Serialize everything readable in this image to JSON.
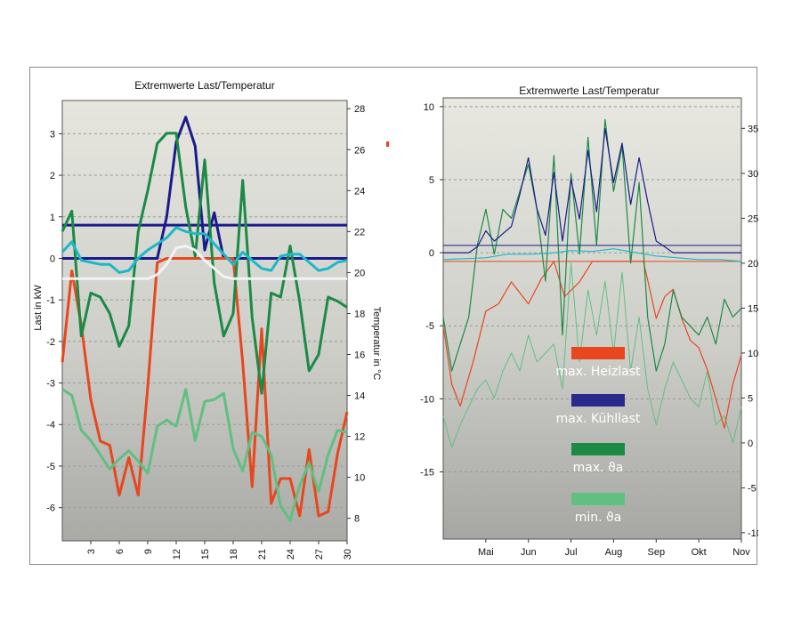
{
  "chart_data": [
    {
      "type": "line",
      "title": "Extremwerte Last/Temperatur",
      "ylabel": "Last in kW",
      "y2label": "Temperatur in °C",
      "xlim": [
        0,
        30
      ],
      "ylim": [
        -6.8,
        3.8
      ],
      "y2lim": [
        6.9,
        28.4
      ],
      "xticks": [
        "3",
        "6",
        "9",
        "12",
        "15",
        "18",
        "21",
        "24",
        "27",
        "30"
      ],
      "yticks": [
        "3",
        "2",
        "1",
        "0",
        "-1",
        "-2",
        "-3",
        "-4",
        "-5",
        "-6"
      ],
      "y2ticks": [
        "28",
        "26",
        "24",
        "22",
        "20",
        "18",
        "16",
        "14",
        "12",
        "10",
        "8"
      ],
      "grid": true,
      "series": [
        {
          "axis": "y",
          "color": "#1a1a8c",
          "x": [
            0,
            1,
            2,
            3,
            4,
            5,
            6,
            7,
            8,
            9,
            10,
            11,
            12,
            13,
            14,
            15,
            16,
            17,
            18,
            19,
            20,
            21,
            22,
            23,
            24,
            25,
            26,
            27,
            28,
            29,
            30
          ],
          "y": [
            0,
            0,
            0,
            0,
            0,
            0,
            0,
            0,
            0,
            0,
            0,
            1,
            2.8,
            3.4,
            2.7,
            0.2,
            1.1,
            0,
            0,
            0,
            0,
            0,
            0,
            0,
            0,
            0,
            0,
            0,
            0,
            0,
            0
          ]
        },
        {
          "axis": "y",
          "color": "#1a1a8c",
          "x": [
            0,
            30
          ],
          "y": [
            0.8,
            0.8
          ]
        },
        {
          "axis": "y",
          "color": "#e8461e",
          "x": [
            0,
            1,
            2,
            3,
            4,
            5,
            6,
            7,
            8,
            9,
            10,
            11,
            12,
            13,
            14,
            15,
            16,
            17,
            18,
            19,
            20,
            21,
            22,
            23,
            24,
            25,
            26,
            27,
            28,
            29,
            30
          ],
          "y": [
            -2.5,
            -0.3,
            -1.6,
            -3.4,
            -4.4,
            -4.5,
            -5.7,
            -4.8,
            -5.7,
            -3.1,
            -0.1,
            0,
            0,
            0,
            0,
            0,
            0,
            0,
            0,
            -2.5,
            -5.5,
            -1.7,
            -5.9,
            -5.3,
            -5.3,
            -6.2,
            -4.6,
            -6.2,
            -6.1,
            -4.7,
            -3.7
          ]
        },
        {
          "axis": "y2",
          "color": "#1a8a44",
          "x": [
            0,
            1,
            2,
            3,
            4,
            5,
            6,
            7,
            8,
            9,
            10,
            11,
            12,
            13,
            14,
            15,
            16,
            17,
            18,
            19,
            20,
            21,
            22,
            23,
            24,
            25,
            26,
            27,
            28,
            29,
            30
          ],
          "y": [
            22,
            23,
            16.9,
            19,
            18.8,
            18,
            16.4,
            17.4,
            22,
            24,
            26.3,
            26.8,
            26.8,
            23.2,
            20.8,
            25.5,
            19.5,
            16.9,
            18,
            24.5,
            17.8,
            14.1,
            19,
            18.8,
            21.3,
            18.6,
            15.2,
            16,
            18.8,
            18.6,
            18.3
          ]
        },
        {
          "axis": "y2",
          "color": "#5fc080",
          "x": [
            0,
            1,
            2,
            3,
            4,
            5,
            6,
            7,
            8,
            9,
            10,
            11,
            12,
            13,
            14,
            15,
            16,
            17,
            18,
            19,
            20,
            21,
            22,
            23,
            24,
            25,
            26,
            27,
            28,
            29,
            30
          ],
          "y": [
            14.3,
            14,
            12.3,
            11.8,
            11.1,
            10.4,
            10.9,
            11.3,
            10.8,
            10.2,
            12.5,
            12.8,
            12.5,
            14.3,
            11.8,
            13.7,
            13.8,
            14.1,
            11.4,
            10.3,
            12.2,
            12,
            11.1,
            8.6,
            7.9,
            9.6,
            10.7,
            9.3,
            11.1,
            12.3,
            12.2
          ]
        },
        {
          "axis": "y2",
          "color": "#1cb8c8",
          "x": [
            0,
            1,
            2,
            3,
            4,
            5,
            6,
            7,
            8,
            9,
            10,
            11,
            12,
            13,
            14,
            15,
            16,
            17,
            18,
            19,
            20,
            21,
            22,
            23,
            24,
            25,
            26,
            27,
            28,
            29,
            30
          ],
          "y": [
            21,
            21.5,
            20.6,
            20.5,
            20.4,
            20.4,
            20,
            20.1,
            20.7,
            21.1,
            21.4,
            21.7,
            22.2,
            22,
            21.9,
            21.9,
            21.4,
            20.9,
            20.4,
            21,
            20.6,
            20.2,
            20.1,
            20.8,
            20.9,
            20.9,
            20.5,
            20.1,
            20.2,
            20.5,
            20.6
          ]
        },
        {
          "axis": "y2",
          "color": "#f0f4f4",
          "x": [
            0,
            1,
            2,
            3,
            4,
            5,
            6,
            7,
            8,
            9,
            10,
            11,
            12,
            13,
            14,
            15,
            16,
            17,
            18,
            19,
            20,
            21,
            22,
            23,
            24,
            25,
            26,
            27,
            28,
            29,
            30
          ],
          "y": [
            19.7,
            19.7,
            19.7,
            19.7,
            19.7,
            19.7,
            19.7,
            19.7,
            19.7,
            19.7,
            19.9,
            20.4,
            21.2,
            21.3,
            21.1,
            20.6,
            20.2,
            19.8,
            19.7,
            19.7,
            19.7,
            19.7,
            19.7,
            19.7,
            19.7,
            19.7,
            19.7,
            19.7,
            19.7,
            19.7,
            19.7
          ]
        }
      ]
    },
    {
      "type": "line",
      "title": "Extremwerte Last/Temperatur",
      "xlim": [
        0,
        7
      ],
      "ylim": [
        -19.6,
        10.6
      ],
      "y2lim": [
        -10.7,
        38.4
      ],
      "xticks": [
        {
          "label": "Mai",
          "x": 1
        },
        {
          "label": "Jun",
          "x": 2
        },
        {
          "label": "Jul",
          "x": 3
        },
        {
          "label": "Aug",
          "x": 4
        },
        {
          "label": "Sep",
          "x": 5
        },
        {
          "label": "Okt",
          "x": 6
        },
        {
          "label": "Nov",
          "x": 7
        }
      ],
      "yticks": [
        "10",
        "5",
        "0",
        "-5",
        "-10",
        "-15"
      ],
      "y2ticks": [
        "35",
        "30",
        "25",
        "20",
        "15",
        "10",
        "5",
        "0",
        "-5",
        "-10"
      ],
      "grid": true,
      "legend": "center",
      "series": [
        {
          "name": "max. Heizlast",
          "color": "#e8461e",
          "axis": "y",
          "x": [
            0,
            0.2,
            0.4,
            0.7,
            1,
            1.3,
            1.6,
            2,
            2.3,
            2.6,
            2.85,
            3.2,
            3.5,
            3.8,
            4.1,
            4.4,
            4.7,
            4.85,
            5,
            5.2,
            5.4,
            5.6,
            5.8,
            6,
            6.2,
            6.4,
            6.6,
            6.8,
            7
          ],
          "y": [
            -5,
            -9,
            -10.5,
            -7.5,
            -4,
            -3.5,
            -2,
            -3.5,
            -1.8,
            -0.6,
            -3,
            -2,
            -0.6,
            -0.6,
            -0.6,
            -0.6,
            -0.6,
            -2.5,
            -4.5,
            -3,
            -2.5,
            -4.5,
            -6,
            -6.5,
            -8,
            -10,
            -12,
            -9,
            -7
          ]
        },
        {
          "name": "max. Kühllast",
          "color": "#1a1a8c",
          "axis": "y",
          "x": [
            0,
            0.2,
            0.4,
            0.6,
            0.8,
            1,
            1.2,
            1.4,
            1.6,
            1.8,
            2,
            2.2,
            2.4,
            2.6,
            2.8,
            3,
            3.2,
            3.4,
            3.6,
            3.8,
            4,
            4.2,
            4.4,
            4.6,
            4.8,
            5,
            5.2,
            5.4,
            5.6,
            5.8,
            6,
            6.2,
            6.4,
            6.6,
            6.8,
            7
          ],
          "y": [
            0,
            0,
            0,
            0,
            0.4,
            1.5,
            0.8,
            1.3,
            1.8,
            4,
            6.5,
            3,
            1.2,
            5.5,
            0.8,
            5,
            2.3,
            7,
            2.8,
            8.5,
            4.8,
            7.5,
            3.3,
            6.5,
            3.5,
            0.8,
            0.4,
            0,
            0,
            0,
            0,
            0,
            0,
            0,
            0,
            0
          ]
        },
        {
          "name": "",
          "color": "#1a1a8c",
          "axis": "y",
          "x": [
            0,
            7
          ],
          "y": [
            0.5,
            0.5
          ]
        },
        {
          "name": "",
          "color": "#e8461e",
          "axis": "y",
          "x": [
            0,
            7
          ],
          "y": [
            -0.6,
            -0.6
          ]
        },
        {
          "name": "max. ϑa",
          "color": "#1a8a44",
          "axis": "y2",
          "x": [
            0,
            0.2,
            0.4,
            0.6,
            0.8,
            1,
            1.2,
            1.4,
            1.6,
            1.8,
            2,
            2.2,
            2.4,
            2.6,
            2.8,
            3,
            3.2,
            3.4,
            3.6,
            3.8,
            4,
            4.2,
            4.4,
            4.6,
            4.8,
            5,
            5.2,
            5.4,
            5.6,
            5.8,
            6,
            6.2,
            6.4,
            6.6,
            6.8,
            7
          ],
          "y": [
            14,
            8,
            11,
            14,
            22,
            26,
            21,
            26,
            25,
            28,
            31,
            26,
            18,
            32,
            12,
            30,
            21,
            34,
            22,
            36,
            28,
            33,
            20,
            29,
            14,
            8,
            11,
            17,
            14,
            13,
            12,
            14,
            11,
            16,
            14,
            15
          ]
        },
        {
          "name": "min. ϑa",
          "color": "#5fc080",
          "axis": "y2",
          "x": [
            0,
            0.2,
            0.4,
            0.6,
            0.8,
            1,
            1.2,
            1.4,
            1.6,
            1.8,
            2,
            2.2,
            2.4,
            2.6,
            2.8,
            3,
            3.2,
            3.4,
            3.6,
            3.8,
            4,
            4.2,
            4.4,
            4.6,
            4.8,
            5,
            5.2,
            5.4,
            5.6,
            5.8,
            6,
            6.2,
            6.4,
            6.6,
            6.8,
            7
          ],
          "y": [
            3,
            -0.5,
            2,
            4,
            6,
            7,
            5,
            8,
            10,
            8,
            12,
            9,
            10,
            11,
            6,
            20,
            9,
            17,
            12,
            18,
            10,
            19,
            8,
            14,
            6,
            2,
            6,
            9,
            7,
            5,
            4,
            8,
            2,
            3,
            0,
            4
          ]
        },
        {
          "name": "",
          "color": "#1cb8c8",
          "axis": "y2",
          "x": [
            0,
            0.5,
            1,
            1.5,
            2,
            2.5,
            3,
            3.5,
            4,
            4.5,
            5,
            5.5,
            6,
            6.5,
            7
          ],
          "y": [
            20.4,
            20.5,
            20.6,
            21,
            21,
            21.1,
            21.4,
            21.3,
            21.6,
            21.2,
            20.8,
            20.6,
            20.4,
            20.4,
            20.2
          ]
        }
      ],
      "legend_entries": [
        {
          "label": "max. Heizlast",
          "color": "#e8461e"
        },
        {
          "label": "max. Kühllast",
          "color": "#2a2a8c"
        },
        {
          "label": "max. ϑa",
          "color": "#1a8a44"
        },
        {
          "label": "min. ϑa",
          "color": "#5fc080"
        }
      ]
    }
  ]
}
